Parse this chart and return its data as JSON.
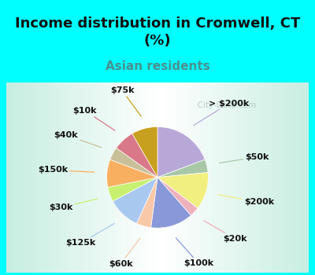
{
  "title": "Income distribution in Cromwell, CT\n(%)",
  "subtitle": "Asian residents",
  "labels": [
    "> $200k",
    "$50k",
    "$200k",
    "$20k",
    "$100k",
    "$60k",
    "$125k",
    "$30k",
    "$150k",
    "$40k",
    "$10k",
    "$75k"
  ],
  "values": [
    18.5,
    4.0,
    11.5,
    3.0,
    13.0,
    4.5,
    10.0,
    4.5,
    8.5,
    4.0,
    6.5,
    8.0
  ],
  "colors": [
    "#b8a8d8",
    "#a8c8a8",
    "#f0ef80",
    "#f0b0bc",
    "#8898d8",
    "#f8c8a8",
    "#a8c8f0",
    "#c8f070",
    "#f8b060",
    "#c8c098",
    "#d87888",
    "#c8a020"
  ],
  "background_top": "#00ffff",
  "background_chart_colors": [
    "#e0f5e0",
    "#f8fff8",
    "#e0f5e0"
  ],
  "startangle": 90,
  "title_fontsize": 13,
  "subtitle_fontsize": 11,
  "label_fontsize": 8,
  "watermark": "  City-Data.com"
}
